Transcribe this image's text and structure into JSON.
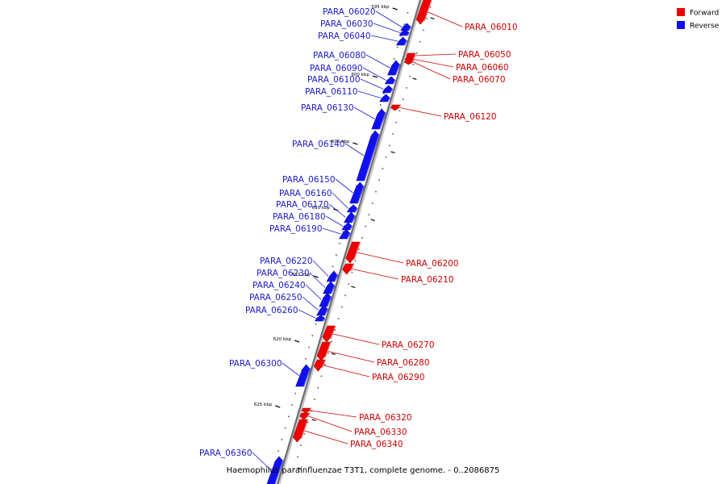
{
  "caption": "Haemophilus parainfluenzae T3T1, complete genome. - 0..2086875",
  "legend": [
    {
      "label": "Forward",
      "color": "#ee0000"
    },
    {
      "label": "Reverse",
      "color": "#1010ee"
    }
  ],
  "scale_marks": [
    "595 kbp",
    "600 kbp",
    "605 kbp",
    "610 kbp",
    "615 kbp",
    "620 kbp",
    "625 kbp"
  ],
  "genes": [
    {
      "name": "PARA_06010",
      "strand": "forward"
    },
    {
      "name": "PARA_06020",
      "strand": "reverse"
    },
    {
      "name": "PARA_06030",
      "strand": "reverse"
    },
    {
      "name": "PARA_06040",
      "strand": "reverse"
    },
    {
      "name": "PARA_06050",
      "strand": "forward"
    },
    {
      "name": "PARA_06060",
      "strand": "forward"
    },
    {
      "name": "PARA_06070",
      "strand": "forward"
    },
    {
      "name": "PARA_06080",
      "strand": "reverse"
    },
    {
      "name": "PARA_06090",
      "strand": "reverse"
    },
    {
      "name": "PARA_06100",
      "strand": "reverse"
    },
    {
      "name": "PARA_06110",
      "strand": "reverse"
    },
    {
      "name": "PARA_06120",
      "strand": "forward"
    },
    {
      "name": "PARA_06130",
      "strand": "reverse"
    },
    {
      "name": "PARA_06140",
      "strand": "reverse"
    },
    {
      "name": "PARA_06150",
      "strand": "reverse"
    },
    {
      "name": "PARA_06160",
      "strand": "reverse"
    },
    {
      "name": "PARA_06170",
      "strand": "reverse"
    },
    {
      "name": "PARA_06180",
      "strand": "reverse"
    },
    {
      "name": "PARA_06190",
      "strand": "reverse"
    },
    {
      "name": "PARA_06200",
      "strand": "forward"
    },
    {
      "name": "PARA_06210",
      "strand": "forward"
    },
    {
      "name": "PARA_06220",
      "strand": "reverse"
    },
    {
      "name": "PARA_06230",
      "strand": "reverse"
    },
    {
      "name": "PARA_06240",
      "strand": "reverse"
    },
    {
      "name": "PARA_06250",
      "strand": "reverse"
    },
    {
      "name": "PARA_06260",
      "strand": "reverse"
    },
    {
      "name": "PARA_06270",
      "strand": "forward"
    },
    {
      "name": "PARA_06280",
      "strand": "forward"
    },
    {
      "name": "PARA_06290",
      "strand": "forward"
    },
    {
      "name": "PARA_06300",
      "strand": "reverse"
    },
    {
      "name": "PARA_06320",
      "strand": "forward"
    },
    {
      "name": "PARA_06330",
      "strand": "forward"
    },
    {
      "name": "PARA_06340",
      "strand": "forward"
    },
    {
      "name": "PARA_06360",
      "strand": "reverse"
    }
  ]
}
